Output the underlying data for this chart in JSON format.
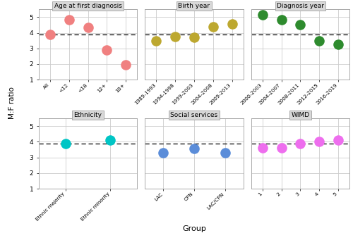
{
  "panels": [
    {
      "title": "Age at first diagnosis",
      "color": "#F08080",
      "x_labels": [
        "All",
        "<12",
        "<18",
        "12+",
        "18+"
      ],
      "y_values": [
        3.9,
        4.85,
        4.35,
        2.9,
        1.95
      ]
    },
    {
      "title": "Birth year",
      "color": "#BDA830",
      "x_labels": [
        "1989-1993",
        "1994-1998",
        "1999-2003",
        "2004-2008",
        "2009-2013"
      ],
      "y_values": [
        3.5,
        3.75,
        3.72,
        4.4,
        4.55
      ]
    },
    {
      "title": "Diagnosis year",
      "color": "#2E8B2E",
      "x_labels": [
        "2000-2003",
        "2004-2007",
        "2008-2011",
        "2012-2015",
        "2016-2019"
      ],
      "y_values": [
        5.15,
        4.85,
        4.5,
        3.5,
        3.25
      ]
    },
    {
      "title": "Ethnicity",
      "color": "#00C5C5",
      "x_labels": [
        "Ethnic majority",
        "Ethnic minority"
      ],
      "y_values": [
        3.88,
        4.1
      ]
    },
    {
      "title": "Social services",
      "color": "#5B8DD9",
      "x_labels": [
        "LAC",
        "CPN",
        "LAC/CPN"
      ],
      "y_values": [
        3.28,
        3.58,
        3.3
      ]
    },
    {
      "title": "WIMD",
      "color": "#EE6EEE",
      "x_labels": [
        "1",
        "2",
        "3",
        "4",
        "5"
      ],
      "y_values": [
        3.62,
        3.62,
        3.88,
        4.02,
        4.1
      ]
    }
  ],
  "dashed_line_y": 3.88,
  "ylabel": "M:F ratio",
  "xlabel": "Group",
  "ylim": [
    1,
    5.5
  ],
  "yticks": [
    1,
    2,
    3,
    4,
    5
  ],
  "marker_size": 110,
  "background_color": "#ffffff",
  "panel_header_color": "#d8d8d8",
  "panel_border_color": "#aaaaaa",
  "grid_color": "#cccccc"
}
